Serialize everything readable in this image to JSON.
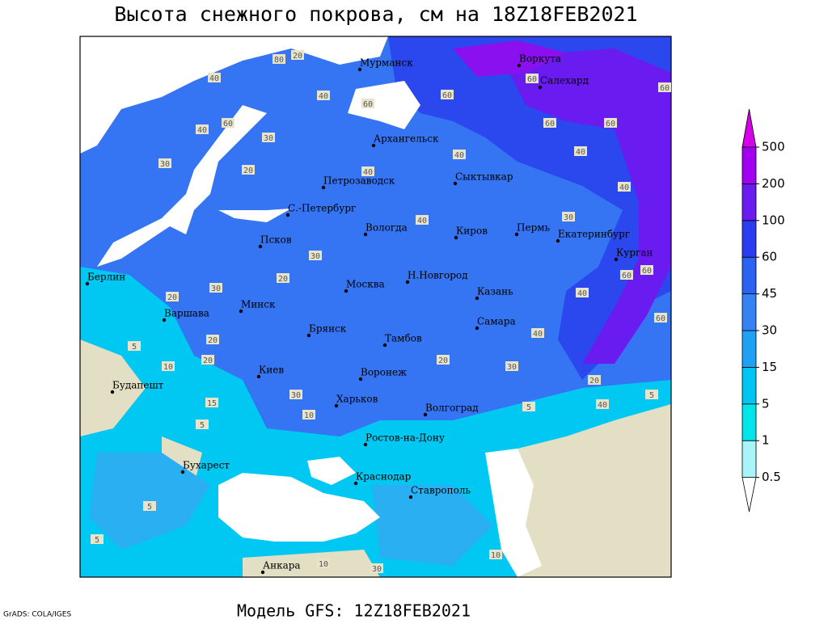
{
  "title": "Высота снежного покрова, см на 18Z18FEB2021",
  "footer": "Модель GFS: 12Z18FEB2021",
  "credit": "GrADS: COLA/IGES",
  "colorbar": {
    "levels": [
      0.5,
      1,
      5,
      15,
      30,
      45,
      60,
      100,
      200,
      500
    ],
    "colors": [
      "#ffffff",
      "#a8f4f8",
      "#00e4ec",
      "#00c4f4",
      "#1ea0f4",
      "#3482f4",
      "#2a62f2",
      "#2a3cf0",
      "#6a1cf0",
      "#a200f0",
      "#d400e8"
    ]
  },
  "cities": [
    "Мурманск",
    "Воркута",
    "Салехард",
    "Архангельск",
    "Петрозаводск",
    "Сыктывкар",
    "С.-Петербург",
    "Вологда",
    "Киров",
    "Пермь",
    "Екатеринбург",
    "Курган",
    "Псков",
    "Берлин",
    "Москва",
    "Н.Новгород",
    "Казань",
    "Минск",
    "Варшава",
    "Самара",
    "Брянск",
    "Тамбов",
    "Киев",
    "Воронеж",
    "Будапешт",
    "Харьков",
    "Волгоград",
    "Ростов-на-Дону",
    "Бухарест",
    "Краснодар",
    "Ставрополь",
    "Анкара"
  ],
  "contour_labels": [
    80,
    20,
    40,
    40,
    60,
    60,
    60,
    60,
    60,
    60,
    40,
    60,
    30,
    30,
    20,
    40,
    40,
    40,
    40,
    30,
    40,
    30,
    20,
    30,
    20,
    40,
    60,
    60,
    60,
    40,
    20,
    10,
    20,
    20,
    30,
    20,
    40,
    30,
    10,
    15,
    5,
    5,
    5,
    5,
    5,
    10,
    30,
    10,
    5
  ]
}
